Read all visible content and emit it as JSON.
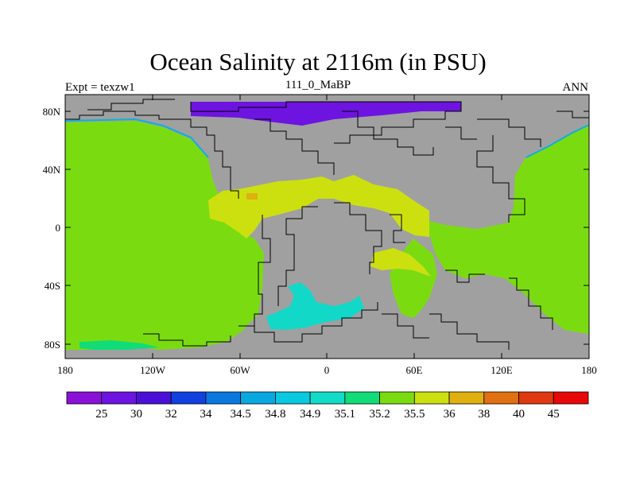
{
  "title": "Ocean Salinity at 2116m (in PSU)",
  "left_label": "Expt = texzw1",
  "center_label": "111_0_MaBP",
  "right_label": "ANN",
  "map": {
    "projection": "cylindrical equidistant",
    "land_color": "#a0a0a0",
    "coast_color": "#000000",
    "lat_ticks": [
      "80N",
      "40N",
      "0",
      "40S",
      "80S"
    ],
    "lon_ticks": [
      "180",
      "120W",
      "60W",
      "0",
      "60E",
      "120E",
      "180"
    ]
  },
  "colorbar": {
    "labels": [
      "25",
      "30",
      "32",
      "34",
      "34.5",
      "34.8",
      "34.9",
      "35.1",
      "35.2",
      "35.5",
      "36",
      "38",
      "40",
      "45"
    ],
    "colors": [
      "#8a12d8",
      "#6e14e0",
      "#4a10d8",
      "#1040e0",
      "#0a78e0",
      "#0aa8e0",
      "#0ac8e0",
      "#12dcc8",
      "#10dc78",
      "#7adc10",
      "#cce010",
      "#e0b010",
      "#e07010",
      "#e03810",
      "#e80808"
    ]
  }
}
